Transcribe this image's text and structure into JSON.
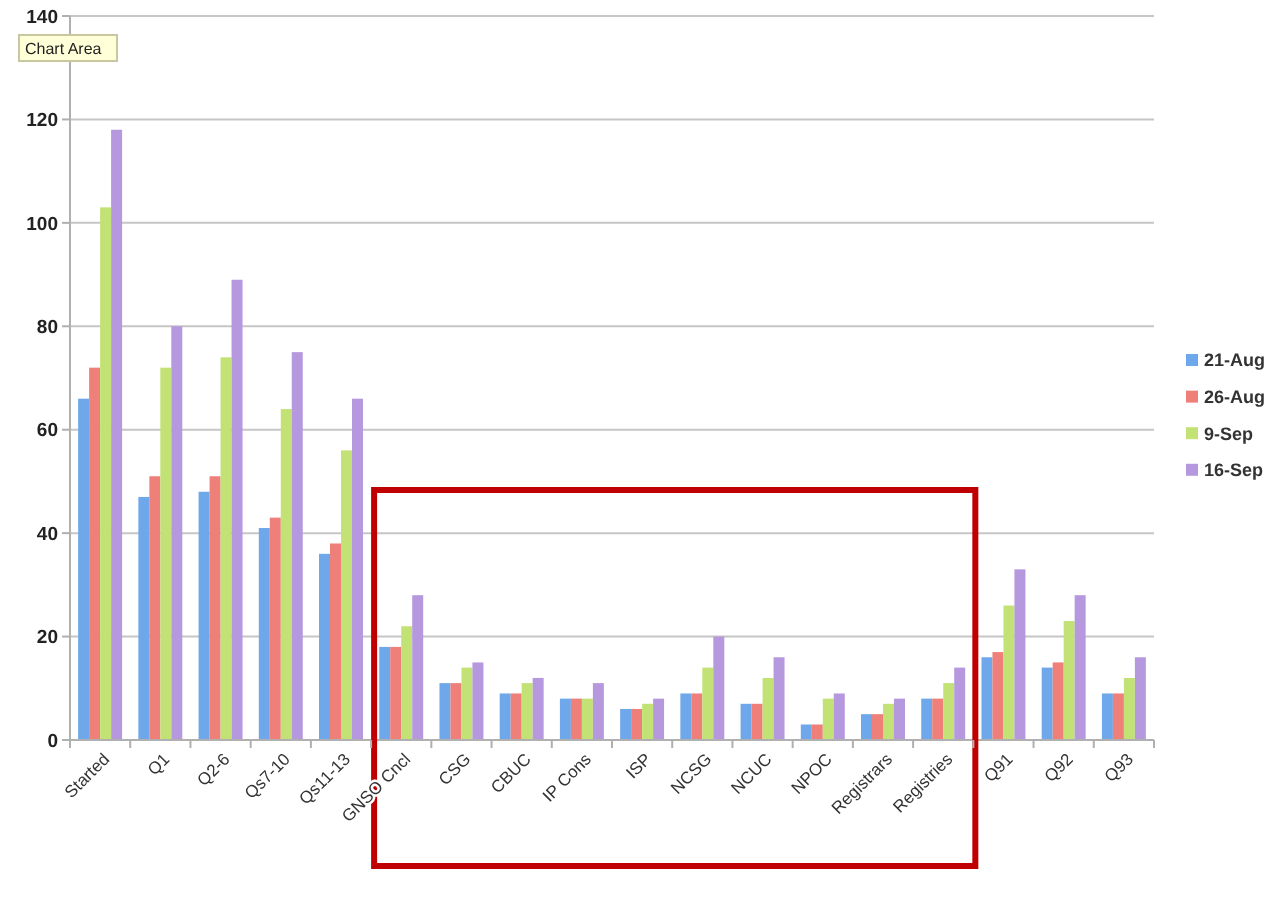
{
  "chart_data": {
    "type": "bar",
    "categories": [
      "Started",
      "Q1",
      "Q2-6",
      "Qs7-10",
      "Qs11-13",
      "GNSO Cncl",
      "CSG",
      "CBUC",
      "IP Cons",
      "ISP",
      "NCSG",
      "NCUC",
      "NPOC",
      "Registrars",
      "Registries",
      "Q91",
      "Q92",
      "Q93"
    ],
    "series": [
      {
        "name": "21-Aug",
        "color": "#6ea8ea",
        "values": [
          66,
          47,
          48,
          41,
          36,
          18,
          11,
          9,
          8,
          6,
          9,
          7,
          3,
          5,
          8,
          16,
          14,
          9
        ]
      },
      {
        "name": "26-Aug",
        "color": "#ee7f79",
        "values": [
          72,
          51,
          51,
          43,
          38,
          18,
          11,
          9,
          8,
          6,
          9,
          7,
          3,
          5,
          8,
          17,
          15,
          9
        ]
      },
      {
        "name": "9-Sep",
        "color": "#c2e275",
        "values": [
          103,
          72,
          74,
          64,
          56,
          22,
          14,
          11,
          8,
          7,
          14,
          12,
          8,
          7,
          11,
          26,
          23,
          12
        ]
      },
      {
        "name": "16-Sep",
        "color": "#b698de",
        "values": [
          118,
          80,
          89,
          75,
          66,
          28,
          15,
          12,
          11,
          8,
          20,
          16,
          9,
          8,
          14,
          33,
          28,
          16
        ]
      }
    ],
    "ylim": [
      0,
      140
    ],
    "yticks": [
      0,
      20,
      40,
      60,
      80,
      100,
      120,
      140
    ],
    "grid": "y",
    "legend": "right",
    "annotations": [
      "Chart Area"
    ]
  }
}
